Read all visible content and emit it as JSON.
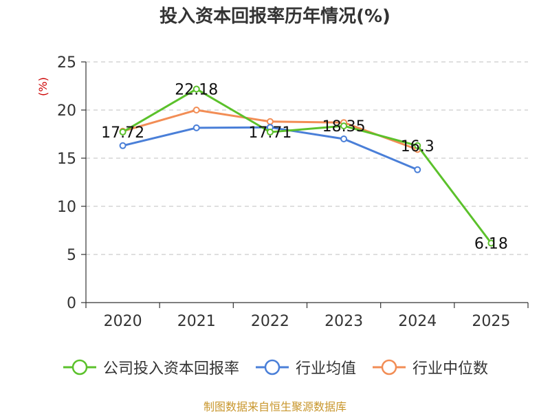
{
  "title": "投入资本回报率历年情况(%)",
  "source": "制图数据来自恒生聚源数据库",
  "chart_data": {
    "type": "line",
    "title": "投入资本回报率历年情况(%)",
    "ylabel": "(%)",
    "xlabel": "",
    "categories": [
      "2020",
      "2021",
      "2022",
      "2023",
      "2024",
      "2025"
    ],
    "ylim": [
      0,
      25
    ],
    "yticks": [
      "0",
      "5",
      "10",
      "15",
      "20",
      "25"
    ],
    "grid": true,
    "legend_position": "bottom",
    "series": [
      {
        "name": "公司投入资本回报率",
        "color": "#5bc12b",
        "values": [
          17.72,
          22.18,
          17.71,
          18.35,
          16.3,
          6.18
        ],
        "data_labels": [
          "17.72",
          "22.18",
          "17.71",
          "18.35",
          "16.3",
          "6.18"
        ]
      },
      {
        "name": "行业均值",
        "color": "#4a7fd8",
        "values": [
          16.3,
          18.15,
          18.2,
          17.0,
          13.8,
          null
        ]
      },
      {
        "name": "行业中位数",
        "color": "#f28d55",
        "values": [
          17.8,
          20.0,
          18.8,
          18.7,
          15.9,
          null
        ]
      }
    ]
  }
}
